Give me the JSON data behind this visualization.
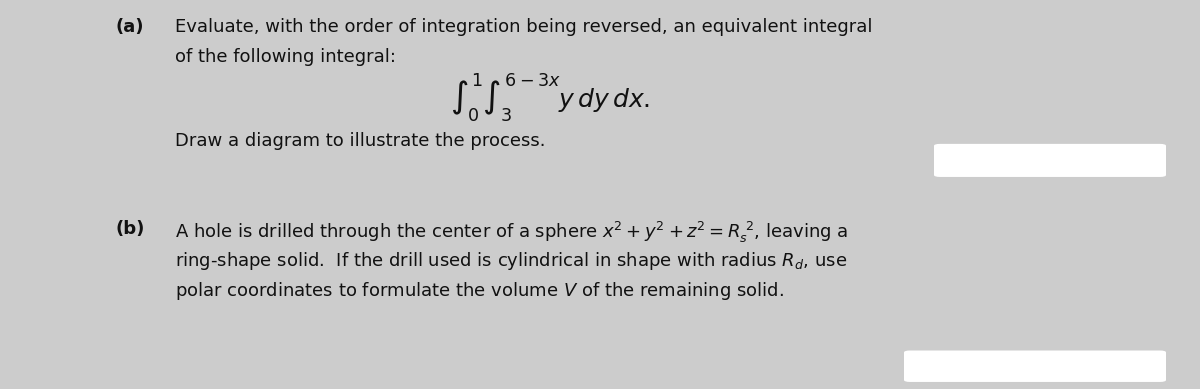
{
  "background_color": "#cccccc",
  "text_color": "#111111",
  "part_a_label": "(a)",
  "part_a_line1": "Evaluate, with the order of integration being reversed, an equivalent integral",
  "part_a_line2": "of the following integral:",
  "integral_display": "$\\int_0^1 \\int_3^{6-3x} y\\,dy\\,dx.$",
  "part_a_line3": "Draw a diagram to illustrate the process.",
  "part_b_label": "(b)",
  "part_b_line1": "A hole is drilled through the center of a sphere $x^2+y^2+z^2=R_s^{\\ 2}$, leaving a",
  "part_b_line2": "ring-shape solid.  If the drill used is cylindrical in shape with radius $R_d$, use",
  "part_b_line3": "polar coordinates to formulate the volume $V$ of the remaining solid.",
  "redacted_color": "#ffffff",
  "font_size_label": 13,
  "font_size_body": 13,
  "font_size_integral": 18
}
